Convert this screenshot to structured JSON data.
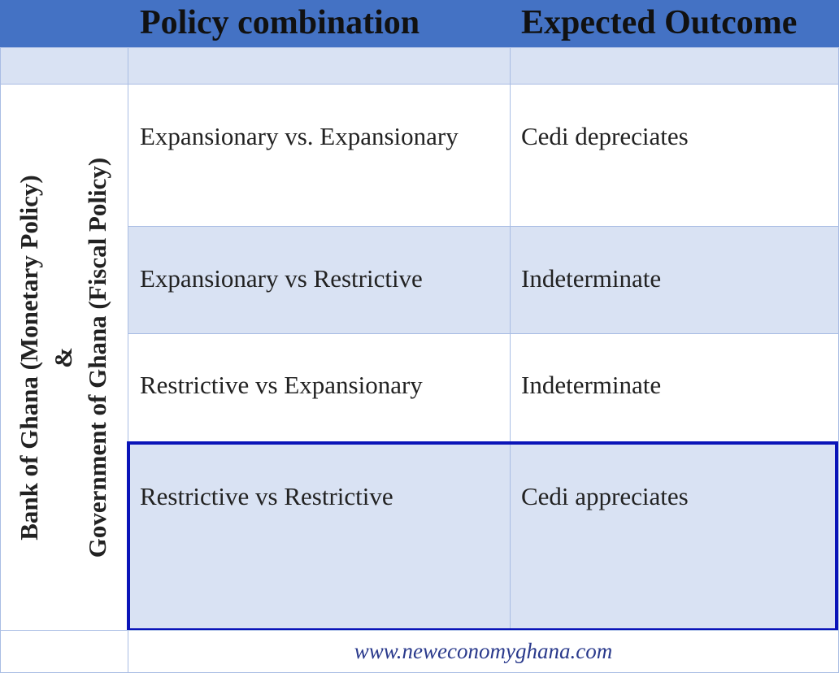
{
  "table": {
    "header": {
      "policy": "Policy combination",
      "outcome": "Expected Outcome"
    },
    "side_label": [
      "Bank of Ghana (Monetary Policy)",
      "&",
      "Government of Ghana (Fiscal Policy)"
    ],
    "rows": [
      [
        "Expansionary vs. Expansionary",
        "Cedi depreciates"
      ],
      [
        "Expansionary vs Restrictive",
        "Indeterminate"
      ],
      [
        "Restrictive vs Expansionary",
        "Indeterminate"
      ],
      [
        "Restrictive vs Restrictive",
        "Cedi appreciates"
      ]
    ],
    "footer": "www.neweconomyghana.com"
  }
}
